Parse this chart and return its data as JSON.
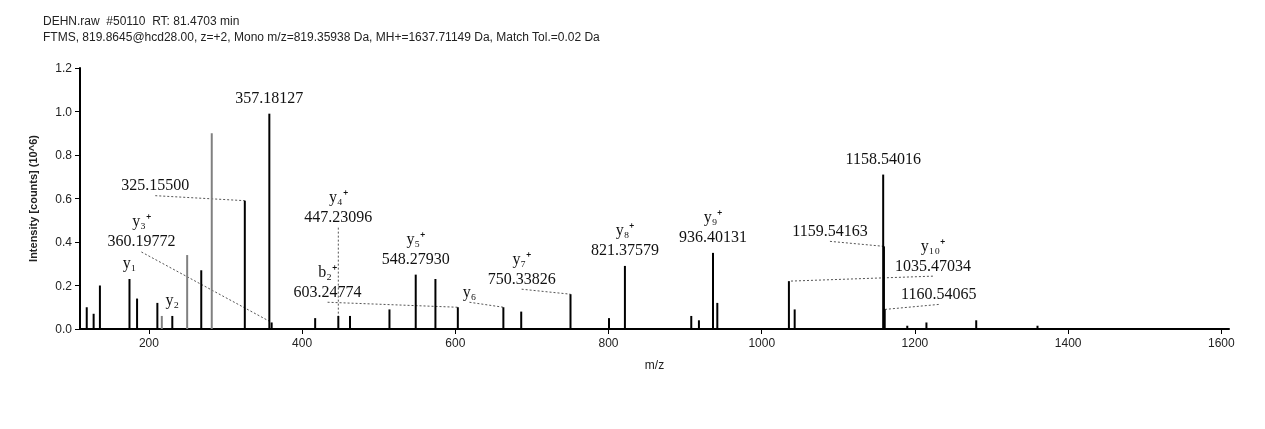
{
  "chart_data": {
    "type": "bar",
    "title": "DEHN.raw  #50110  RT: 81.4703 min",
    "subtitle": "FTMS, 819.8645@hcd28.00, z=+2, Mono m/z=819.35938 Da, MH+=1637.71149 Da, Match Tol.=0.02 Da",
    "xlabel": "m/z",
    "ylabel": "Intensity [counts] (10^6)",
    "x": [
      118.8,
      127.8,
      136,
      174.6,
      184.5,
      211,
      216.8,
      230.5,
      249.9,
      268.3,
      282,
      325.155,
      357.18127,
      360.19772,
      417,
      447.23096,
      462.5,
      514,
      548.2793,
      574,
      603.24774,
      662.7,
      686,
      750.33826,
      800.6,
      821.37579,
      908,
      918,
      936.40131,
      942,
      1035.47034,
      1043,
      1158.54016,
      1159.54163,
      1160.54065,
      1190,
      1215,
      1280,
      1360
    ],
    "values": [
      0.1,
      0.07,
      0.2,
      0.23,
      0.14,
      0.12,
      0.06,
      0.06,
      0.34,
      0.27,
      0.9,
      0.59,
      0.99,
      0.03,
      0.05,
      0.06,
      0.06,
      0.09,
      0.25,
      0.23,
      0.1,
      0.1,
      0.08,
      0.16,
      0.05,
      0.29,
      0.06,
      0.04,
      0.35,
      0.12,
      0.22,
      0.09,
      0.71,
      0.38,
      0.09,
      0.015,
      0.03,
      0.04,
      0.015
    ],
    "colors": [
      "#000000",
      "#000000",
      "#000000",
      "#000000",
      "#000000",
      "#000000",
      "#808080",
      "#000000",
      "#808080",
      "#000000",
      "#808080",
      "#000000",
      "#000000",
      "#000000",
      "#000000",
      "#000000",
      "#000000",
      "#000000",
      "#000000",
      "#000000",
      "#000000",
      "#000000",
      "#000000",
      "#000000",
      "#000000",
      "#000000",
      "#000000",
      "#000000",
      "#000000",
      "#000000",
      "#000000",
      "#000000",
      "#000000",
      "#000000",
      "#000000",
      "#000000",
      "#000000",
      "#000000",
      "#000000"
    ],
    "xlim": [
      110,
      1610
    ],
    "xticks": [
      200,
      400,
      600,
      800,
      1000,
      1200,
      1400,
      1600
    ],
    "ylim": [
      0,
      1.2
    ],
    "yticks": [
      {
        "value": 0,
        "label": "0.0"
      },
      {
        "value": 0.2,
        "label": "0.2"
      },
      {
        "value": 0.4,
        "label": "0.4"
      },
      {
        "value": 0.6,
        "label": "0.6"
      },
      {
        "value": 0.8,
        "label": "0.8"
      },
      {
        "value": 1,
        "label": "1.0"
      },
      {
        "value": 1.2,
        "label": "1.2"
      }
    ],
    "grid": false,
    "annotations": [
      {
        "text": "357.18127",
        "x": 357.18127,
        "y": 0.99
      },
      {
        "text": "325.15500",
        "x": 325.155,
        "y": 0.59
      },
      {
        "text": "y₃⁺\n360.19772",
        "x": 360.19772,
        "y": 0.03
      },
      {
        "text": "y₄⁺\n447.23096",
        "x": 447.23096,
        "y": 0.06
      },
      {
        "text": "y₁",
        "x": 174.6,
        "y": 0.23
      },
      {
        "text": "y₂",
        "x": 230.5,
        "y": 0.06
      },
      {
        "text": "y₅⁺\n548.27930",
        "x": 548.2793,
        "y": 0.25
      },
      {
        "text": "b₂⁺\n603.24774",
        "x": 603.24774,
        "y": 0.1
      },
      {
        "text": "y₇⁺\n750.33826",
        "x": 750.33826,
        "y": 0.16
      },
      {
        "text": "y₈⁺\n821.37579",
        "x": 821.37579,
        "y": 0.29
      },
      {
        "text": "y₆",
        "x": 662.7,
        "y": 0.1
      },
      {
        "text": "y₉⁺\n936.40131",
        "x": 936.40131,
        "y": 0.35
      },
      {
        "text": "y₁₀⁺\n1035.47034",
        "x": 1035.47034,
        "y": 0.22
      },
      {
        "text": "1158.54016",
        "x": 1158.54016,
        "y": 0.71
      },
      {
        "text": "1159.54163",
        "x": 1159.54163,
        "y": 0.38
      },
      {
        "text": "1160.54065",
        "x": 1160.54065,
        "y": 0.09
      }
    ]
  }
}
